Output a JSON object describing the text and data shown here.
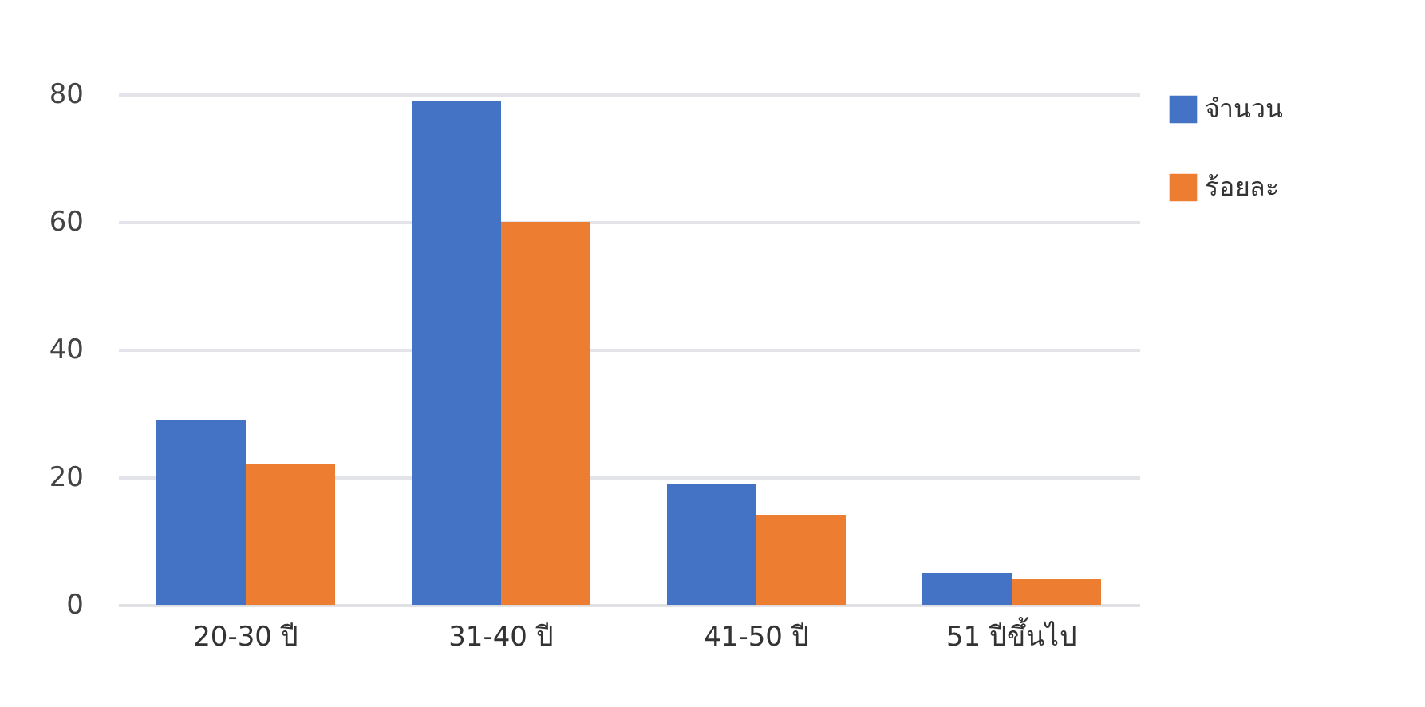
{
  "chart_data": {
    "type": "bar",
    "categories": [
      "20-30 ปี",
      "31-40 ปี",
      "41-50 ปี",
      "51 ปีขึ้นไป"
    ],
    "series": [
      {
        "name": "จำนวน",
        "color": "#4472c4",
        "values": [
          29,
          79,
          19,
          5
        ]
      },
      {
        "name": "ร้อยละ",
        "color": "#ed7d31",
        "values": [
          22,
          60,
          14,
          4
        ]
      }
    ],
    "ylim": [
      0,
      80
    ],
    "yticks": [
      0,
      20,
      40,
      60,
      80
    ],
    "grid": "y",
    "legend": "right"
  }
}
